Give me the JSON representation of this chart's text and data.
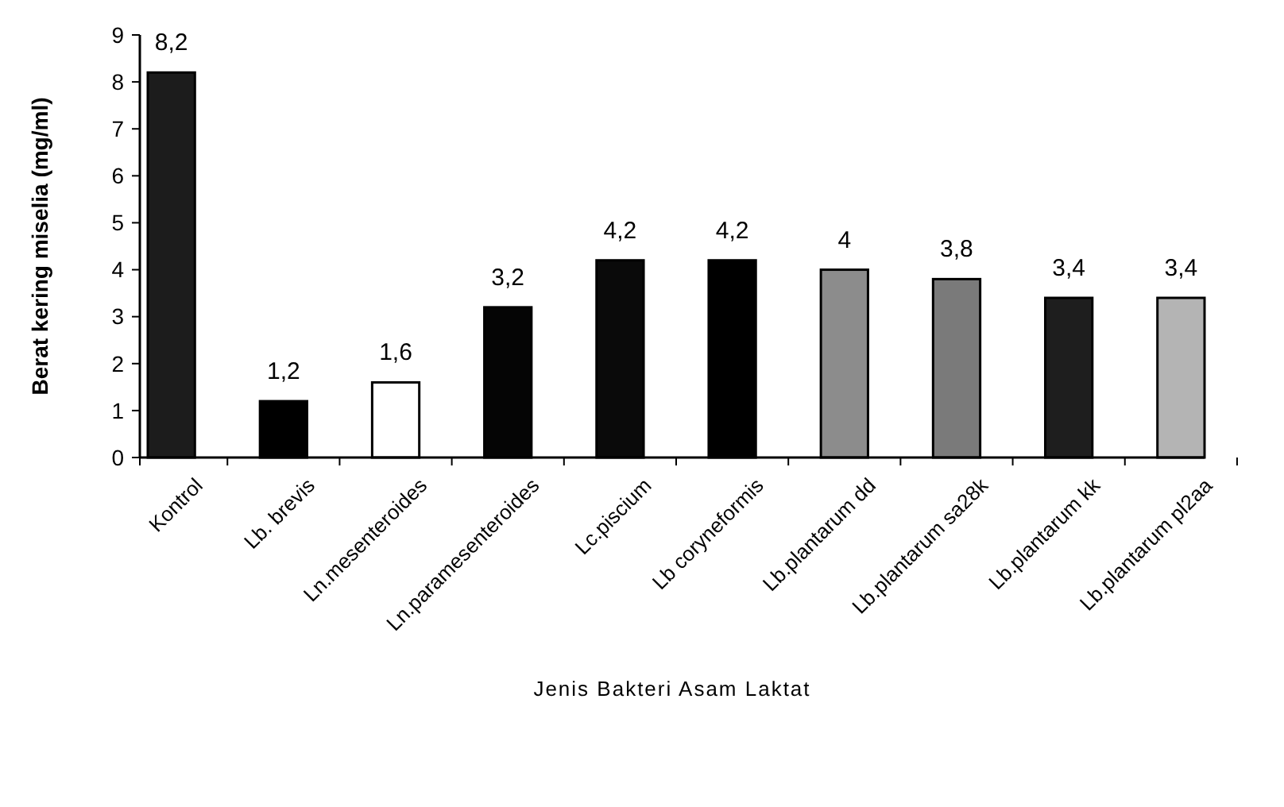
{
  "chart_data": {
    "type": "bar",
    "xlabel": "Jenis Bakteri Asam Laktat",
    "ylabel": "Berat kering miselia (mg/ml)",
    "categories": [
      "Kontrol",
      "Lb. brevis",
      "Ln.mesenteroides",
      "Ln.paramesenteroides",
      "Lc.piscium",
      "Lb coryneformis",
      "Lb.plantarum dd",
      "Lb.plantarum sa28k",
      "Lb.plantarum kk",
      "Lb.plantarum pl2aa"
    ],
    "values": [
      8.2,
      1.2,
      1.6,
      3.2,
      4.2,
      4.2,
      4,
      3.8,
      3.4,
      3.4
    ],
    "value_labels": [
      "8,2",
      "1,2",
      "1,6",
      "3,2",
      "4,2",
      "4,2",
      "4",
      "3,8",
      "3,4",
      "3,4"
    ],
    "colors": [
      "#1c1c1c",
      "#000000",
      "#ffffff",
      "#050505",
      "#0a0a0a",
      "#000000",
      "#8c8c8c",
      "#7a7a7a",
      "#1e1e1e",
      "#b4b4b4"
    ],
    "ylim": [
      0,
      9
    ],
    "yticks": [
      0,
      1,
      2,
      3,
      4,
      5,
      6,
      7,
      8,
      9
    ],
    "grid": false
  }
}
